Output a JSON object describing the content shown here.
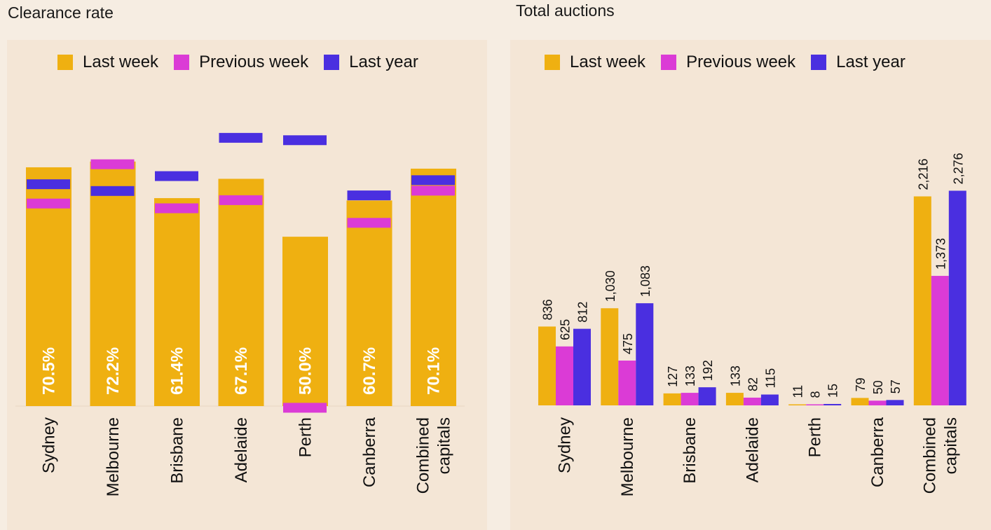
{
  "colors": {
    "last_week": "#efb011",
    "previous_week": "#db3bd6",
    "last_year": "#4a2fe0",
    "panel_bg": "#f4e6d6",
    "page_bg": "#f6ede2"
  },
  "chart_data": [
    {
      "type": "bar",
      "title": "Clearance rate",
      "legend": [
        "Last week",
        "Previous week",
        "Last year"
      ],
      "legend_position": "top",
      "categories": [
        "Sydney",
        "Melbourne",
        "Brisbane",
        "Adelaide",
        "Perth",
        "Canberra",
        "Combined capitals"
      ],
      "category_lines": [
        [
          "Sydney"
        ],
        [
          "Melbourne"
        ],
        [
          "Brisbane"
        ],
        [
          "Adelaide"
        ],
        [
          "Perth"
        ],
        [
          "Canberra"
        ],
        [
          "Combined",
          "capitals"
        ]
      ],
      "unit": "%",
      "ylim": [
        0,
        80
      ],
      "series": [
        {
          "name": "Last week",
          "style": "bar",
          "values": [
            70.5,
            72.2,
            61.4,
            67.1,
            50.0,
            60.7,
            70.1
          ]
        },
        {
          "name": "Previous week",
          "style": "marker",
          "values": [
            59.8,
            71.4,
            58.4,
            60.8,
            -0.5,
            54.1,
            63.6
          ]
        },
        {
          "name": "Last year",
          "style": "marker",
          "values": [
            65.5,
            63.5,
            67.9,
            79.2,
            78.5,
            62.2,
            66.7
          ]
        }
      ],
      "data_labels": [
        "70.5%",
        "72.2%",
        "61.4%",
        "67.1%",
        "50.0%",
        "60.7%",
        "70.1%"
      ]
    },
    {
      "type": "bar",
      "title": "Total auctions",
      "legend": [
        "Last week",
        "Previous week",
        "Last year"
      ],
      "legend_position": "top",
      "categories": [
        "Sydney",
        "Melbourne",
        "Brisbane",
        "Adelaide",
        "Perth",
        "Canberra",
        "Combined capitals"
      ],
      "category_lines": [
        [
          "Sydney"
        ],
        [
          "Melbourne"
        ],
        [
          "Brisbane"
        ],
        [
          "Adelaide"
        ],
        [
          "Perth"
        ],
        [
          "Canberra"
        ],
        [
          "Combined",
          "capitals"
        ]
      ],
      "ylim": [
        0,
        3000
      ],
      "series": [
        {
          "name": "Last week",
          "values": [
            836,
            1030,
            127,
            133,
            11,
            79,
            2216
          ],
          "labels": [
            "836",
            "1,030",
            "127",
            "133",
            "11",
            "79",
            "2,216"
          ]
        },
        {
          "name": "Previous week",
          "values": [
            625,
            475,
            133,
            82,
            8,
            50,
            1373
          ],
          "labels": [
            "625",
            "475",
            "133",
            "82",
            "8",
            "50",
            "1,373"
          ]
        },
        {
          "name": "Last year",
          "values": [
            812,
            1083,
            192,
            115,
            15,
            57,
            2276
          ],
          "labels": [
            "812",
            "1,083",
            "192",
            "115",
            "15",
            "57",
            "2,276"
          ]
        }
      ]
    }
  ]
}
